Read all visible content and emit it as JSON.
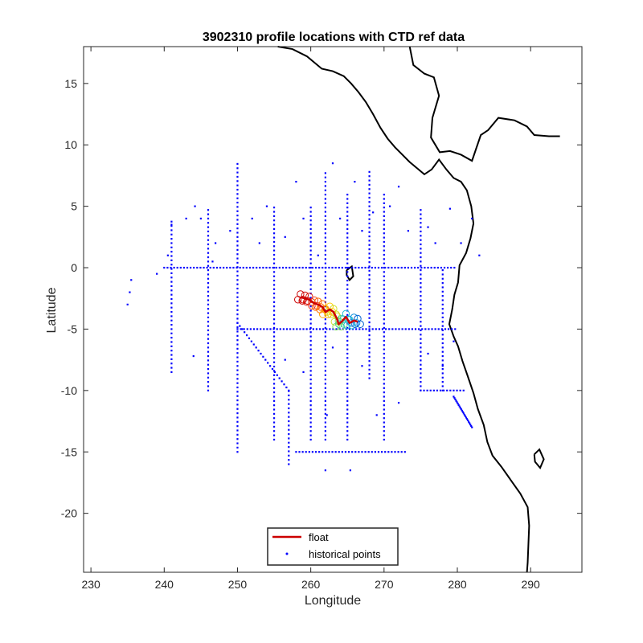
{
  "chart_data": {
    "type": "scatter",
    "title": "3902310 profile locations with CTD ref data",
    "xlabel": "Longitude",
    "ylabel": "Latitude",
    "xlim": [
      229,
      297
    ],
    "ylim": [
      -24.8,
      18
    ],
    "xticks": [
      230,
      240,
      250,
      260,
      270,
      280,
      290
    ],
    "yticks": [
      15,
      10,
      5,
      0,
      -5,
      -10,
      -15,
      -20
    ],
    "grid": false,
    "legend_position": "bottom-center",
    "legend": [
      {
        "label": "float",
        "color": "#cc0000",
        "marker": "line"
      },
      {
        "label": "historical points",
        "color": "#0000ff",
        "marker": "dot"
      }
    ],
    "float_track": [
      [
        258.6,
        -2.4
      ],
      [
        259.2,
        -2.5
      ],
      [
        259.8,
        -2.6
      ],
      [
        260.5,
        -2.9
      ],
      [
        261.0,
        -3.0
      ],
      [
        261.6,
        -3.2
      ],
      [
        262.0,
        -3.6
      ],
      [
        262.6,
        -3.4
      ],
      [
        263.1,
        -3.6
      ],
      [
        263.6,
        -4.2
      ],
      [
        263.8,
        -4.6
      ],
      [
        264.2,
        -4.4
      ],
      [
        264.8,
        -4.0
      ],
      [
        265.3,
        -4.5
      ],
      [
        265.9,
        -4.3
      ],
      [
        266.4,
        -4.4
      ]
    ],
    "historical_lines": {
      "vertical": [
        {
          "lon": 250,
          "lat_from": -15,
          "lat_to": 8.5
        },
        {
          "lon": 265,
          "lat_from": -14,
          "lat_to": 6
        },
        {
          "lon": 275,
          "lat_from": -10,
          "lat_to": 5
        },
        {
          "lon": 257,
          "lat_from": -16,
          "lat_to": -10
        },
        {
          "lon": 255,
          "lat_from": -14,
          "lat_to": 5
        },
        {
          "lon": 260,
          "lat_from": -14,
          "lat_to": 5
        },
        {
          "lon": 262,
          "lat_from": -14,
          "lat_to": 8
        },
        {
          "lon": 270,
          "lat_from": -14,
          "lat_to": 6
        },
        {
          "lon": 278,
          "lat_from": -10,
          "lat_to": 0
        },
        {
          "lon": 268,
          "lat_from": -9,
          "lat_to": 8
        },
        {
          "lon": 246,
          "lat_from": -10,
          "lat_to": 5
        },
        {
          "lon": 241,
          "lat_from": -8.5,
          "lat_to": 4
        }
      ],
      "horizontal": [
        {
          "lat": 0,
          "lon_from": 240,
          "lon_to": 280
        },
        {
          "lat": -5,
          "lon_from": 250,
          "lon_to": 280
        },
        {
          "lat": -10,
          "lon_from": 275,
          "lon_to": 281
        },
        {
          "lat": -15,
          "lon_from": 258,
          "lon_to": 273
        }
      ],
      "diagonal": [
        {
          "from": [
            250,
            -4.5
          ],
          "to": [
            257,
            -10
          ]
        },
        {
          "from": [
            279.5,
            -10.5
          ],
          "to": [
            282,
            -13
          ]
        }
      ],
      "extra_points": [
        [
          235,
          -3
        ],
        [
          235.5,
          -1
        ],
        [
          235.3,
          -2
        ],
        [
          239,
          -0.5
        ],
        [
          240.5,
          1
        ],
        [
          241,
          3.5
        ],
        [
          243,
          4
        ],
        [
          244.2,
          5
        ],
        [
          245,
          4
        ],
        [
          246.6,
          0.5
        ],
        [
          247,
          2
        ],
        [
          249,
          3
        ],
        [
          252,
          4
        ],
        [
          253,
          2
        ],
        [
          254,
          5
        ],
        [
          256.5,
          2.5
        ],
        [
          258,
          7
        ],
        [
          259,
          4
        ],
        [
          261,
          1
        ],
        [
          263,
          8.5
        ],
        [
          264,
          4
        ],
        [
          266,
          7
        ],
        [
          267,
          3
        ],
        [
          268.5,
          4.5
        ],
        [
          270.8,
          5
        ],
        [
          272,
          6.6
        ],
        [
          273.3,
          3
        ],
        [
          276,
          3.3
        ],
        [
          277,
          2
        ],
        [
          279,
          4.8
        ],
        [
          280.5,
          2
        ],
        [
          282,
          4
        ],
        [
          283,
          1
        ],
        [
          256.5,
          -7.5
        ],
        [
          259,
          -8.5
        ],
        [
          263,
          -6.5
        ],
        [
          267,
          -8
        ],
        [
          269,
          -12
        ],
        [
          272,
          -11
        ],
        [
          276,
          -7
        ],
        [
          278,
          -8
        ],
        [
          279.5,
          -6
        ],
        [
          265.4,
          -16.5
        ],
        [
          262,
          -16.5
        ],
        [
          244,
          -7.2
        ],
        [
          262.2,
          -12
        ]
      ]
    },
    "coastline_color": "#000000"
  }
}
